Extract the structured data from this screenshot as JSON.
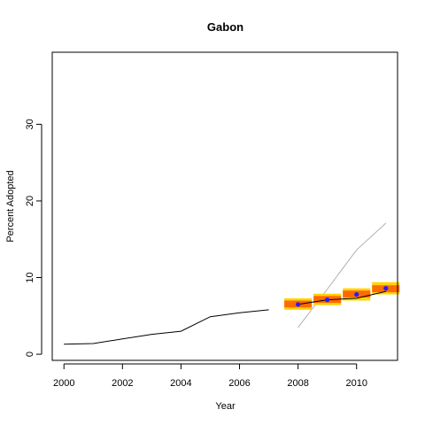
{
  "chart_data": {
    "type": "line",
    "title": "Gabon",
    "xlabel": "Year",
    "ylabel": "Percent Adopted",
    "xlim": [
      1999.6,
      2011.4
    ],
    "ylim": [
      -0.8,
      39.4
    ],
    "x_ticks": [
      2000,
      2002,
      2004,
      2006,
      2008,
      2010
    ],
    "x_tick_labels": [
      "2000",
      "2002",
      "2004",
      "2006",
      "2008",
      "2010"
    ],
    "y_ticks": [
      0,
      10,
      20,
      30
    ],
    "y_tick_labels": [
      "0",
      "10",
      "20",
      "30"
    ],
    "grid": false,
    "series": [
      {
        "style": "historical-line",
        "color": "#000000",
        "x": [
          2000,
          2001,
          2002,
          2003,
          2004,
          2005,
          2006,
          2007
        ],
        "y": [
          1.3,
          1.4,
          2.0,
          2.6,
          3.0,
          4.9,
          5.4,
          5.8
        ]
      },
      {
        "style": "projection-line",
        "color": "#000000",
        "x": [
          2008,
          2009,
          2010,
          2011
        ],
        "y": [
          6.5,
          7.1,
          7.3,
          8.2
        ]
      },
      {
        "style": "trend-line",
        "color": "#b0b0b0",
        "x": [
          2008,
          2009,
          2010,
          2011
        ],
        "y": [
          3.5,
          8.5,
          13.6,
          17.1
        ]
      },
      {
        "style": "estimate-boxes",
        "point_color": "#2020ff",
        "outer_color": "#ffd400",
        "inner_color": "#ff6a00",
        "x": [
          2008,
          2009,
          2010,
          2011
        ],
        "y": [
          6.5,
          7.1,
          7.8,
          8.6
        ],
        "outer_low": [
          5.8,
          6.4,
          7.0,
          7.8
        ],
        "outer_high": [
          7.3,
          7.9,
          8.6,
          9.4
        ],
        "inner_low": [
          6.1,
          6.7,
          7.4,
          8.1
        ],
        "inner_high": [
          7.0,
          7.6,
          8.3,
          9.0
        ]
      }
    ]
  }
}
